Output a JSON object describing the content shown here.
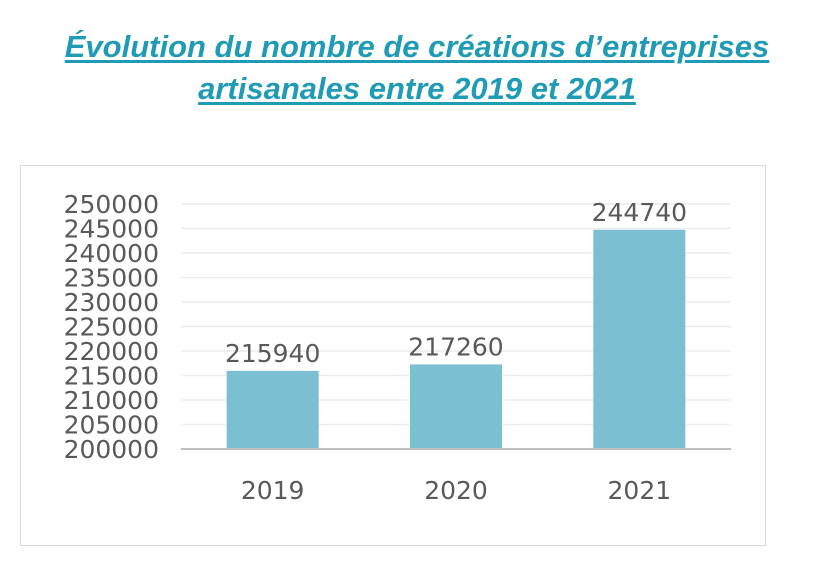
{
  "chart_data": {
    "type": "bar",
    "title_line1": "Évolution du nombre de créations d’entreprises",
    "title_line2": "artisanales entre 2019 et 2021",
    "categories": [
      "2019",
      "2020",
      "2021"
    ],
    "values": [
      215940,
      217260,
      244740
    ],
    "data_labels": [
      "215940",
      "217260",
      "244740"
    ],
    "ylim": [
      200000,
      250000
    ],
    "y_ticks": [
      "200000",
      "205000",
      "210000",
      "215000",
      "220000",
      "225000",
      "230000",
      "235000",
      "240000",
      "245000",
      "250000"
    ],
    "xlabel": "",
    "ylabel": "",
    "grid": true,
    "legend": "none",
    "bar_color": "#7bbfd2",
    "grid_color": "#ececec",
    "axis_color": "#bfbfbf",
    "title_color": "#1f9bb5"
  }
}
